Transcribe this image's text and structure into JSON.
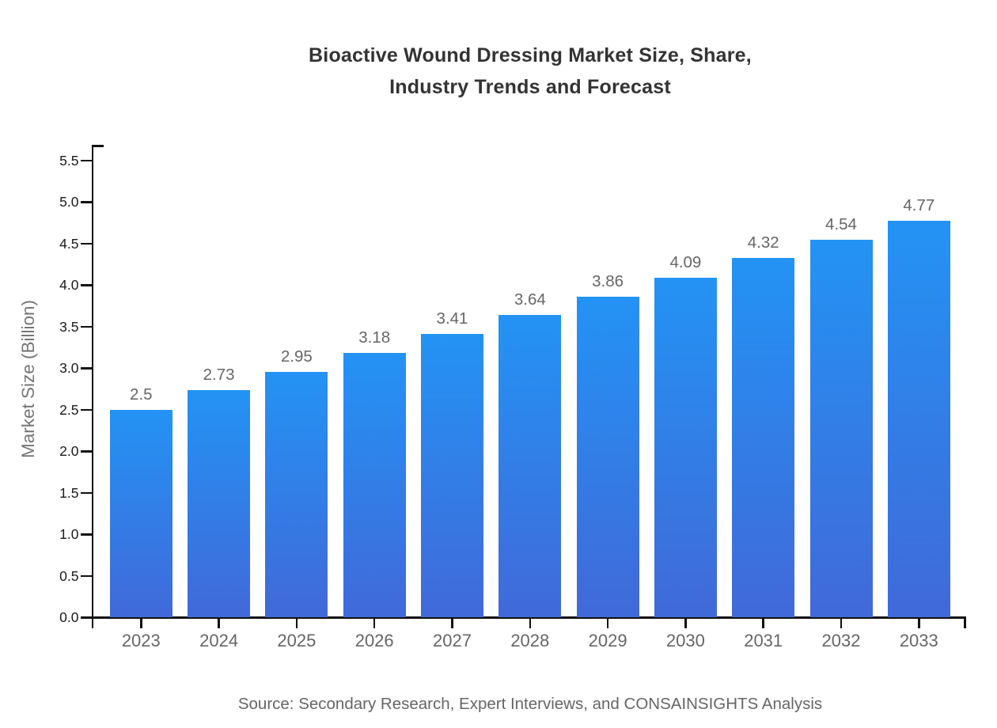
{
  "source_note": "Source: Secondary Research, Expert Interviews, and CONSAINSIGHTS Analysis",
  "chart_data": {
    "type": "bar",
    "title": "Bioactive Wound Dressing Market Size, Share, Industry Trends and Forecast",
    "title_lines": [
      "Bioactive Wound Dressing Market Size, Share,",
      "Industry Trends and Forecast"
    ],
    "xlabel": "",
    "ylabel": "Market Size (Billion)",
    "categories": [
      "2023",
      "2024",
      "2025",
      "2026",
      "2027",
      "2028",
      "2029",
      "2030",
      "2031",
      "2032",
      "2033"
    ],
    "values": [
      2.5,
      2.73,
      2.95,
      3.18,
      3.41,
      3.64,
      3.86,
      4.09,
      4.32,
      4.54,
      4.77
    ],
    "value_labels": [
      "2.5",
      "2.73",
      "2.95",
      "3.18",
      "3.41",
      "3.64",
      "3.86",
      "4.09",
      "4.32",
      "4.54",
      "4.77"
    ],
    "yticks": [
      0.0,
      0.5,
      1.0,
      1.5,
      2.0,
      2.5,
      3.0,
      3.5,
      4.0,
      4.5,
      5.0,
      5.5
    ],
    "ytick_labels": [
      "0.0",
      "0.5",
      "1.0",
      "1.5",
      "2.0",
      "2.5",
      "3.0",
      "3.5",
      "4.0",
      "4.5",
      "5.0",
      "5.5"
    ],
    "ylim": [
      0,
      5.7
    ],
    "grid": false,
    "legend": "none",
    "colors": {
      "bar_gradient_top": "#2393f4",
      "bar_gradient_bottom": "#4169d9",
      "axis": "#111111",
      "ytick_label": "#1a1a1a",
      "xtick_label": "#666666",
      "value_label": "#666666",
      "axis_title": "#757575",
      "title": "#333333",
      "background": "#ffffff"
    }
  }
}
